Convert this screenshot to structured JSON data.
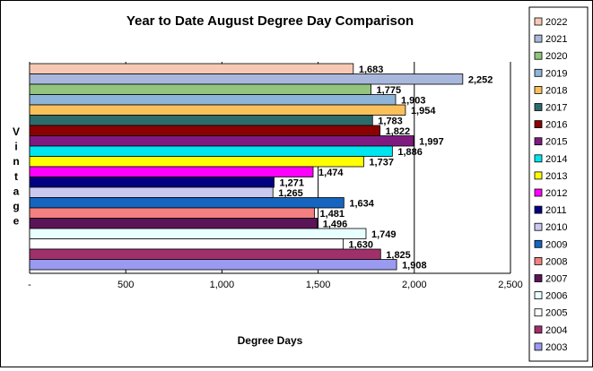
{
  "chart_data": {
    "type": "bar",
    "orientation": "horizontal",
    "title": "Year to Date August Degree Day Comparison",
    "xlabel": "Degree Days",
    "ylabel": "Vintage",
    "xlim": [
      0,
      2500
    ],
    "xticks": [
      0,
      500,
      1000,
      1500,
      2000,
      2500
    ],
    "xtick_labels": [
      "-",
      "500",
      "1,000",
      "1,500",
      "2,000",
      "2,500"
    ],
    "grid": "vertical",
    "legend_position": "right",
    "series": [
      {
        "name": "2022",
        "value": 1683,
        "label": "1,683",
        "color": "#f7c9b4"
      },
      {
        "name": "2021",
        "value": 2252,
        "label": "2,252",
        "color": "#a9b7dc"
      },
      {
        "name": "2020",
        "value": 1775,
        "label": "1,775",
        "color": "#93c47d"
      },
      {
        "name": "2019",
        "value": 1903,
        "label": "1,903",
        "color": "#8eb5d9"
      },
      {
        "name": "2018",
        "value": 1954,
        "label": "1,954",
        "color": "#fbc05a"
      },
      {
        "name": "2017",
        "value": 1783,
        "label": "1,783",
        "color": "#2e6b6b"
      },
      {
        "name": "2016",
        "value": 1822,
        "label": "1,822",
        "color": "#8b0000"
      },
      {
        "name": "2015",
        "value": 1997,
        "label": "1,997",
        "color": "#7f1a80"
      },
      {
        "name": "2014",
        "value": 1886,
        "label": "1,886",
        "color": "#00e5ee"
      },
      {
        "name": "2013",
        "value": 1737,
        "label": "1,737",
        "color": "#ffff00"
      },
      {
        "name": "2012",
        "value": 1474,
        "label": "1,474",
        "color": "#ff00ff"
      },
      {
        "name": "2011",
        "value": 1271,
        "label": "1,271",
        "color": "#000080"
      },
      {
        "name": "2010",
        "value": 1265,
        "label": "1,265",
        "color": "#c9c9f0"
      },
      {
        "name": "2009",
        "value": 1634,
        "label": "1,634",
        "color": "#1565c0"
      },
      {
        "name": "2008",
        "value": 1481,
        "label": "1,481",
        "color": "#f28080"
      },
      {
        "name": "2007",
        "value": 1496,
        "label": "1,496",
        "color": "#5b1458"
      },
      {
        "name": "2006",
        "value": 1749,
        "label": "1,749",
        "color": "#e8ffff"
      },
      {
        "name": "2005",
        "value": 1630,
        "label": "1,630",
        "color": "#ffffff"
      },
      {
        "name": "2004",
        "value": 1825,
        "label": "1,825",
        "color": "#a0306a"
      },
      {
        "name": "2003",
        "value": 1908,
        "label": "1,908",
        "color": "#9a9af0"
      }
    ]
  }
}
